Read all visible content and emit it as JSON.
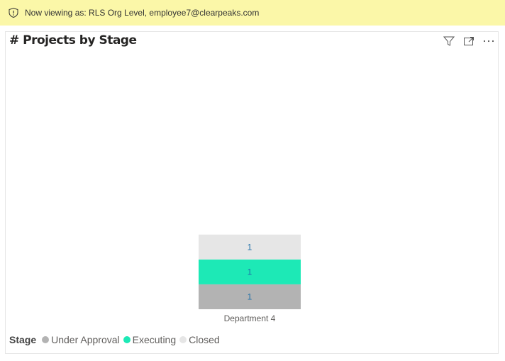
{
  "banner": {
    "text": "Now viewing as: RLS Org Level, employee7@clearpeaks.com",
    "icon": "shield-alert-icon"
  },
  "visual": {
    "title": "# Projects by Stage",
    "toolbar": [
      "filter-icon",
      "focus-mode-icon",
      "more-options-icon"
    ]
  },
  "chart_data": {
    "type": "stacked-bar",
    "title": "# Projects by Stage",
    "categories": [
      "Department 4"
    ],
    "legend_title": "Stage",
    "legend_placement": "bottom-left",
    "series": [
      {
        "name": "Under Approval",
        "values": [
          1
        ],
        "color": "#b3b3b3"
      },
      {
        "name": "Executing",
        "values": [
          1
        ],
        "color": "#1de9b6"
      },
      {
        "name": "Closed",
        "values": [
          1
        ],
        "color": "#e6e6e6"
      }
    ],
    "data_labels": [
      "1",
      "1",
      "1"
    ],
    "ylim": [
      0,
      10.4
    ],
    "grid": false,
    "label_color": "#1f6fa8"
  }
}
